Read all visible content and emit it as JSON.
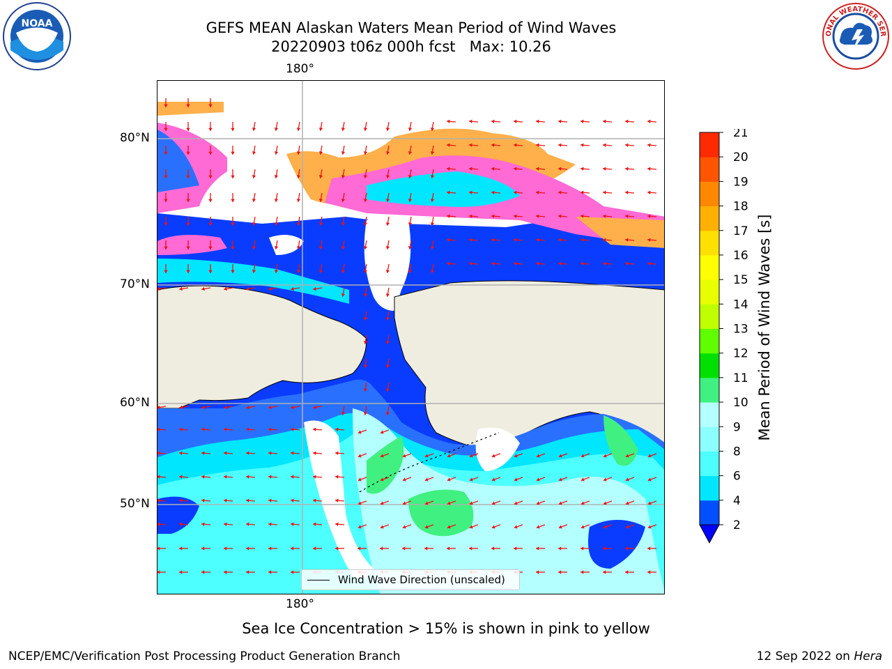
{
  "title": {
    "line1": "GEFS MEAN Alaskan Waters Mean Period of Wind Waves",
    "line2": "20220903 t06z 000h fcst   Max: 10.26"
  },
  "map": {
    "lon_labels": [
      "180°",
      "180°"
    ],
    "lat_labels": [
      "80°N",
      "70°N",
      "60°N",
      "50°N"
    ],
    "legend_label": "Wind Wave Direction (unscaled)"
  },
  "colorbar": {
    "label": "Mean Period of Wind Waves [s]",
    "ticks": [
      "2",
      "4",
      "6",
      "8",
      "9",
      "10",
      "11",
      "12",
      "13",
      "14",
      "15",
      "16",
      "17",
      "18",
      "19",
      "20",
      "21"
    ],
    "colors": [
      "#0050ff",
      "#00e6ff",
      "#4dffff",
      "#8cffff",
      "#b4ffff",
      "#40f080",
      "#00e000",
      "#60ff00",
      "#c0ff00",
      "#e8ff00",
      "#ffff00",
      "#ffe000",
      "#ffb000",
      "#ff8800",
      "#ff5500",
      "#ff2a00",
      "#ff0000"
    ],
    "extend_color": "#0000ff"
  },
  "note": "Sea Ice Concentration > 15% is shown in pink to yellow",
  "footer": {
    "left": "NCEP/EMC/Verification Post Processing Product Generation Branch",
    "right_prefix": "12 Sep 2022 on ",
    "right_host": "Hera"
  },
  "logos": {
    "left": "NOAA",
    "right": "NATIONAL WEATHER SERVICE"
  }
}
